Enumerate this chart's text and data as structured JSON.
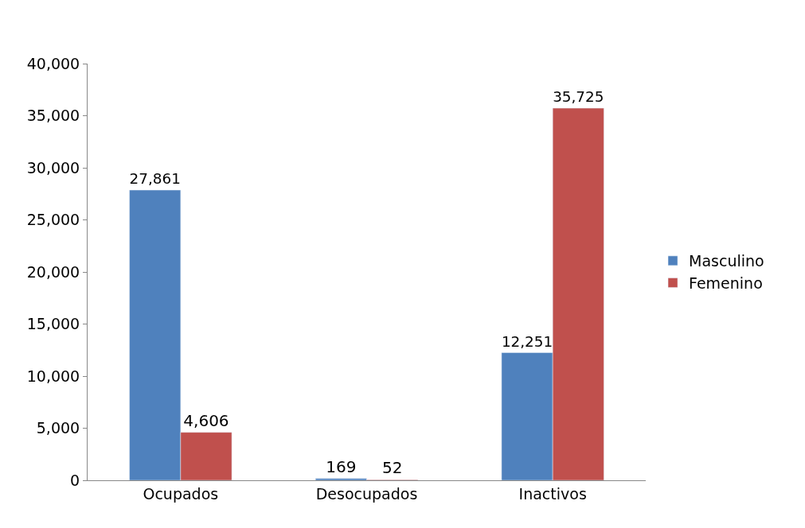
{
  "chart_data": {
    "type": "bar",
    "categories": [
      "Ocupados",
      "Desocupados",
      "Inactivos"
    ],
    "series": [
      {
        "name": "Masculino",
        "color": "#4f81bd",
        "values": [
          27861,
          169,
          12251
        ],
        "value_labels": [
          "27,861",
          "169",
          "12,251"
        ]
      },
      {
        "name": "Femenino",
        "color": "#c0504d",
        "values": [
          4606,
          52,
          35725
        ],
        "value_labels": [
          "4,606",
          "52",
          "35,725"
        ]
      }
    ],
    "ylim": [
      0,
      40000
    ],
    "yticks": [
      {
        "value": 0,
        "label": "0"
      },
      {
        "value": 5000,
        "label": "5,000"
      },
      {
        "value": 10000,
        "label": "10,000"
      },
      {
        "value": 15000,
        "label": "15,000"
      },
      {
        "value": 20000,
        "label": "20,000"
      },
      {
        "value": 25000,
        "label": "25,000"
      },
      {
        "value": 30000,
        "label": "30,000"
      },
      {
        "value": 35000,
        "label": "35,000"
      },
      {
        "value": 40000,
        "label": "40,000"
      }
    ],
    "legend": "right"
  }
}
